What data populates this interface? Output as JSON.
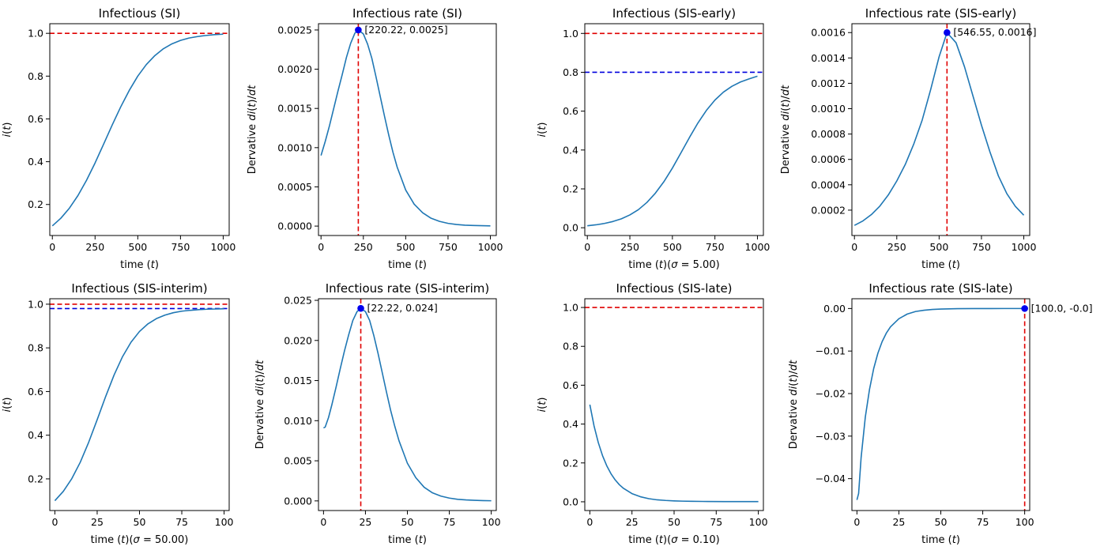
{
  "colors": {
    "series": "#1f77b4",
    "red_line": "#e00000",
    "blue_line": "#0000dd",
    "marker": "#0000ee",
    "axis": "#000000",
    "background": "#ffffff"
  },
  "chart_data": [
    {
      "type": "line",
      "title": "Infectious (SI)",
      "xlabel": "time (t)",
      "ylabel": "i(t)",
      "xlim": [
        -15,
        1035
      ],
      "ylim": [
        0.055,
        1.045
      ],
      "xticks": [
        0,
        250,
        500,
        750,
        1000
      ],
      "yticks": [
        0.2,
        0.4,
        0.6,
        0.8,
        1.0
      ],
      "hlines": [
        {
          "y": 1.0,
          "color": "red"
        }
      ],
      "series": [
        {
          "x": [
            0,
            50,
            100,
            150,
            200,
            250,
            300,
            350,
            400,
            450,
            500,
            550,
            600,
            650,
            700,
            750,
            800,
            850,
            900,
            950,
            1000
          ],
          "y": [
            0.1,
            0.136,
            0.183,
            0.242,
            0.313,
            0.394,
            0.482,
            0.571,
            0.656,
            0.733,
            0.8,
            0.854,
            0.896,
            0.928,
            0.951,
            0.967,
            0.978,
            0.985,
            0.99,
            0.994,
            0.996
          ]
        }
      ]
    },
    {
      "type": "line",
      "title": "Infectious rate (SI)",
      "xlabel": "time (t)",
      "ylabel": "Dervative di(t)/dt",
      "xlim": [
        -15,
        1035
      ],
      "ylim": [
        -0.00012,
        0.00258
      ],
      "xticks": [
        0,
        250,
        500,
        750,
        1000
      ],
      "yticks": [
        0.0,
        0.0005,
        0.001,
        0.0015,
        0.002,
        0.0025
      ],
      "ytick_labels": [
        "0.0000",
        "0.0005",
        "0.0010",
        "0.0015",
        "0.0020",
        "0.0025"
      ],
      "vlines": [
        {
          "x": 220.22,
          "color": "red"
        }
      ],
      "point": {
        "x": 220.22,
        "y": 0.0025,
        "label": "[220.22, 0.0025]"
      },
      "series": [
        {
          "x": [
            0,
            25,
            50,
            75,
            100,
            125,
            150,
            175,
            200,
            220,
            250,
            275,
            300,
            325,
            350,
            375,
            400,
            425,
            450,
            500,
            550,
            600,
            650,
            700,
            750,
            800,
            850,
            900,
            950,
            1000
          ],
          "y": [
            0.0009,
            0.00108,
            0.00128,
            0.0015,
            0.00172,
            0.00193,
            0.00215,
            0.00233,
            0.00246,
            0.0025,
            0.00245,
            0.00232,
            0.00214,
            0.0019,
            0.00165,
            0.0014,
            0.00116,
            0.00094,
            0.00075,
            0.00046,
            0.00028,
            0.00017,
            0.0001,
            6e-05,
            3.5e-05,
            2e-05,
            1.2e-05,
            8e-06,
            5e-06,
            3e-06
          ]
        }
      ]
    },
    {
      "type": "line",
      "title": "Infectious (SIS-early)",
      "xlabel": "time (t)(σ = 5.00)",
      "ylabel": "i(t)",
      "xlim": [
        -15,
        1035
      ],
      "ylim": [
        -0.04,
        1.05
      ],
      "xticks": [
        0,
        250,
        500,
        750,
        1000
      ],
      "yticks": [
        0.0,
        0.2,
        0.4,
        0.6,
        0.8,
        1.0
      ],
      "hlines": [
        {
          "y": 1.0,
          "color": "red"
        },
        {
          "y": 0.8,
          "color": "blue"
        }
      ],
      "series": [
        {
          "x": [
            0,
            50,
            100,
            150,
            200,
            250,
            300,
            350,
            400,
            450,
            500,
            550,
            600,
            650,
            700,
            750,
            800,
            850,
            900,
            950,
            1000
          ],
          "y": [
            0.01,
            0.015,
            0.022,
            0.032,
            0.046,
            0.066,
            0.093,
            0.13,
            0.178,
            0.237,
            0.307,
            0.385,
            0.464,
            0.539,
            0.604,
            0.657,
            0.698,
            0.728,
            0.75,
            0.766,
            0.78
          ]
        }
      ]
    },
    {
      "type": "line",
      "title": "Infectious rate (SIS-early)",
      "xlabel": "time (t)",
      "ylabel": "Dervative di(t)/dt",
      "xlim": [
        -15,
        1035
      ],
      "ylim": [
        0.0,
        0.00167
      ],
      "xticks": [
        0,
        250,
        500,
        750,
        1000
      ],
      "yticks": [
        0.0002,
        0.0004,
        0.0006,
        0.0008,
        0.001,
        0.0012,
        0.0014,
        0.0016
      ],
      "ytick_labels": [
        "0.0002",
        "0.0004",
        "0.0006",
        "0.0008",
        "0.0010",
        "0.0012",
        "0.0014",
        "0.0016"
      ],
      "vlines": [
        {
          "x": 546.55,
          "color": "red"
        }
      ],
      "point": {
        "x": 546.55,
        "y": 0.0016,
        "label": "[546.55, 0.0016]"
      },
      "series": [
        {
          "x": [
            0,
            50,
            100,
            150,
            200,
            250,
            300,
            350,
            400,
            450,
            500,
            546.55,
            600,
            650,
            700,
            750,
            800,
            850,
            900,
            950,
            1000
          ],
          "y": [
            8e-05,
            0.000115,
            0.000165,
            0.000232,
            0.00032,
            0.00043,
            0.00056,
            0.00072,
            0.00091,
            0.00115,
            0.00141,
            0.0016,
            0.00152,
            0.00133,
            0.0011,
            0.00087,
            0.00066,
            0.00047,
            0.00033,
            0.00023,
            0.00016
          ]
        }
      ]
    },
    {
      "type": "line",
      "title": "Infectious (SIS-interim)",
      "xlabel": "time (t)(σ = 50.00)",
      "ylabel": "i(t)",
      "xlim": [
        -3,
        103
      ],
      "ylim": [
        0.055,
        1.025
      ],
      "xticks": [
        0,
        25,
        50,
        75,
        100
      ],
      "yticks": [
        0.2,
        0.4,
        0.6,
        0.8,
        1.0
      ],
      "hlines": [
        {
          "y": 1.0,
          "color": "red"
        },
        {
          "y": 0.98,
          "color": "blue"
        }
      ],
      "series": [
        {
          "x": [
            0,
            5,
            10,
            15,
            20,
            25,
            30,
            35,
            40,
            45,
            50,
            55,
            60,
            65,
            70,
            75,
            80,
            85,
            90,
            95,
            100
          ],
          "y": [
            0.1,
            0.143,
            0.201,
            0.276,
            0.368,
            0.471,
            0.577,
            0.676,
            0.76,
            0.826,
            0.875,
            0.91,
            0.934,
            0.95,
            0.961,
            0.968,
            0.972,
            0.975,
            0.977,
            0.978,
            0.979
          ]
        }
      ]
    },
    {
      "type": "line",
      "title": "Infectious rate (SIS-interim)",
      "xlabel": "time (t)",
      "ylabel": "Dervative di(t)/dt",
      "xlim": [
        -3,
        103
      ],
      "ylim": [
        -0.0012,
        0.0252
      ],
      "xticks": [
        0,
        25,
        50,
        75,
        100
      ],
      "yticks": [
        0.0,
        0.005,
        0.01,
        0.015,
        0.02,
        0.025
      ],
      "ytick_labels": [
        "0.000",
        "0.005",
        "0.010",
        "0.015",
        "0.020",
        "0.025"
      ],
      "vlines": [
        {
          "x": 22.22,
          "color": "red"
        }
      ],
      "point": {
        "x": 22.22,
        "y": 0.024,
        "label": "[22.22, 0.024]"
      },
      "series": [
        {
          "x": [
            0,
            1,
            3,
            5,
            7.5,
            10,
            12.5,
            15,
            17.5,
            20,
            22.22,
            25,
            27.5,
            30,
            32.5,
            35,
            37.5,
            40,
            42.5,
            45,
            50,
            55,
            60,
            65,
            70,
            75,
            80,
            85,
            90,
            95,
            100
          ],
          "y": [
            0.0091,
            0.0092,
            0.0104,
            0.012,
            0.0142,
            0.0165,
            0.0187,
            0.0207,
            0.0225,
            0.0236,
            0.024,
            0.0236,
            0.0225,
            0.0206,
            0.0184,
            0.016,
            0.0136,
            0.0113,
            0.0093,
            0.0075,
            0.0047,
            0.0029,
            0.0017,
            0.001,
            0.0006,
            0.00035,
            0.0002,
            0.00012,
            7e-05,
            4e-05,
            2e-05
          ]
        }
      ]
    },
    {
      "type": "line",
      "title": "Infectious (SIS-late)",
      "xlabel": "time (t)(σ = 0.10)",
      "ylabel": "i(t)",
      "xlim": [
        -3,
        103
      ],
      "ylim": [
        -0.045,
        1.045
      ],
      "xticks": [
        0,
        25,
        50,
        75,
        100
      ],
      "yticks": [
        0.0,
        0.2,
        0.4,
        0.6,
        0.8,
        1.0
      ],
      "hlines": [
        {
          "y": 1.0,
          "color": "red"
        }
      ],
      "series": [
        {
          "x": [
            0,
            2.5,
            5,
            7.5,
            10,
            12.5,
            15,
            17.5,
            20,
            25,
            30,
            35,
            40,
            45,
            50,
            55,
            60,
            70,
            80,
            90,
            100
          ],
          "y": [
            0.5,
            0.39,
            0.305,
            0.238,
            0.186,
            0.145,
            0.113,
            0.088,
            0.069,
            0.042,
            0.026,
            0.016,
            0.01,
            0.0068,
            0.0046,
            0.0033,
            0.0025,
            0.0015,
            0.0011,
            0.001,
            0.001
          ]
        }
      ]
    },
    {
      "type": "line",
      "title": "Infectious rate (SIS-late)",
      "xlabel": "time (t)",
      "ylabel": "Dervative di(t)/dt",
      "xlim": [
        -3,
        103
      ],
      "ylim": [
        -0.0475,
        0.0023
      ],
      "xticks": [
        0,
        25,
        50,
        75,
        100
      ],
      "yticks": [
        -0.04,
        -0.03,
        -0.02,
        -0.01,
        0.0
      ],
      "ytick_labels": [
        "−0.04",
        "−0.03",
        "−0.02",
        "−0.01",
        "0.00"
      ],
      "vlines": [
        {
          "x": 100,
          "color": "red"
        }
      ],
      "point": {
        "x": 100,
        "y": 0.0,
        "label": "[100.0, -0.0]"
      },
      "series": [
        {
          "x": [
            0,
            1,
            2.5,
            5,
            7.5,
            10,
            12.5,
            15,
            17.5,
            20,
            25,
            30,
            35,
            40,
            45,
            50,
            60,
            70,
            80,
            90,
            100
          ],
          "y": [
            -0.045,
            -0.0435,
            -0.035,
            -0.0255,
            -0.019,
            -0.0141,
            -0.0105,
            -0.0078,
            -0.0058,
            -0.0043,
            -0.0024,
            -0.0013,
            -0.0007,
            -0.0004,
            -0.00022,
            -0.00012,
            -4e-05,
            -1.2e-05,
            -4e-06,
            -1e-06,
            0.0
          ]
        }
      ]
    }
  ]
}
